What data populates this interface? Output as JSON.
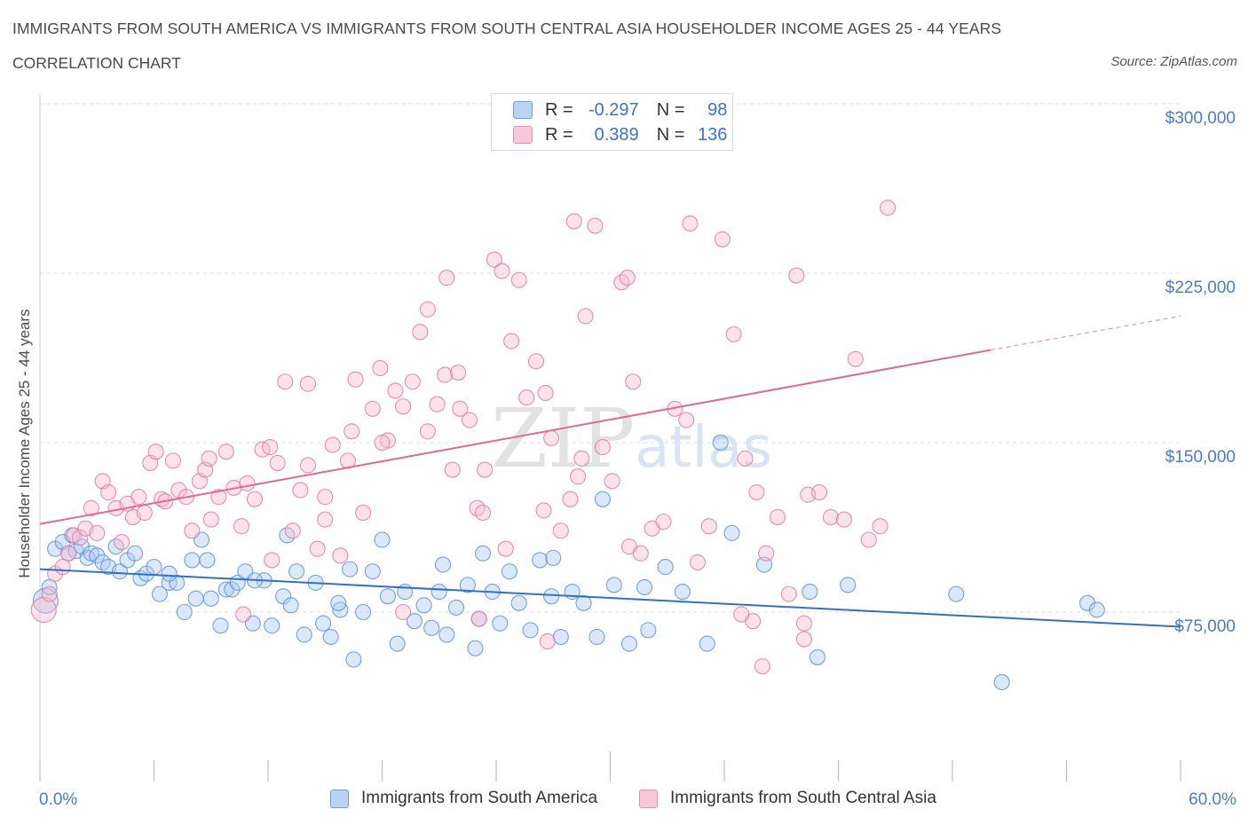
{
  "chart_data": {
    "type": "scatter",
    "title": "IMMIGRANTS FROM SOUTH AMERICA VS IMMIGRANTS FROM SOUTH CENTRAL ASIA HOUSEHOLDER INCOME AGES 25 - 44 YEARS",
    "subtitle": "CORRELATION CHART",
    "source": "Source: ZipAtlas.com",
    "watermark": "ZIPatlas",
    "ylabel": "Householder Income Ages 25 - 44 years",
    "xlim": [
      0,
      60
    ],
    "ylim": [
      0,
      300000
    ],
    "x_tick_labels": {
      "left": "0.0%",
      "right": "60.0%"
    },
    "y_ticks": [
      {
        "value": 75000,
        "label": "$75,000"
      },
      {
        "value": 150000,
        "label": "$150,000"
      },
      {
        "value": 225000,
        "label": "$225,000"
      },
      {
        "value": 300000,
        "label": "$300,000"
      }
    ],
    "stats": [
      {
        "r_label": "R =",
        "r": "-0.297",
        "n_label": "N =",
        "n": "98"
      },
      {
        "r_label": "R =",
        "r": "0.389",
        "n_label": "N =",
        "n": "136"
      }
    ],
    "series": [
      {
        "name": "Immigrants from South America",
        "color": "#5b93db",
        "fill": "#a9c8ee",
        "trend": {
          "x0": 0,
          "y0": 94000,
          "x1": 60,
          "y1": 68500
        },
        "points": [
          [
            0.3,
            80000
          ],
          [
            0.5,
            86000
          ],
          [
            0.8,
            103000
          ],
          [
            1.2,
            106000
          ],
          [
            1.5,
            101000
          ],
          [
            1.7,
            109000
          ],
          [
            1.9,
            102000
          ],
          [
            2.2,
            104000
          ],
          [
            2.5,
            99000
          ],
          [
            2.7,
            101000
          ],
          [
            3.0,
            100000
          ],
          [
            3.3,
            97000
          ],
          [
            3.6,
            95000
          ],
          [
            4.0,
            104000
          ],
          [
            4.2,
            93000
          ],
          [
            4.6,
            98000
          ],
          [
            5.0,
            101000
          ],
          [
            5.3,
            90000
          ],
          [
            5.6,
            92000
          ],
          [
            6.0,
            95000
          ],
          [
            6.3,
            83000
          ],
          [
            6.8,
            88000
          ],
          [
            7.2,
            88000
          ],
          [
            7.6,
            75000
          ],
          [
            8.0,
            98000
          ],
          [
            8.2,
            81000
          ],
          [
            8.5,
            107000
          ],
          [
            8.8,
            98000
          ],
          [
            9.0,
            81000
          ],
          [
            9.5,
            69000
          ],
          [
            9.8,
            85000
          ],
          [
            10.1,
            85000
          ],
          [
            10.4,
            88000
          ],
          [
            10.8,
            93000
          ],
          [
            11.2,
            70000
          ],
          [
            11.8,
            89000
          ],
          [
            12.2,
            69000
          ],
          [
            12.8,
            82000
          ],
          [
            13.2,
            78000
          ],
          [
            13.5,
            93000
          ],
          [
            13.9,
            65000
          ],
          [
            14.5,
            88000
          ],
          [
            14.9,
            70000
          ],
          [
            15.3,
            64000
          ],
          [
            15.8,
            76000
          ],
          [
            16.3,
            94000
          ],
          [
            16.5,
            54000
          ],
          [
            17.0,
            75000
          ],
          [
            17.5,
            93000
          ],
          [
            18.0,
            107000
          ],
          [
            18.3,
            82000
          ],
          [
            18.8,
            61000
          ],
          [
            19.2,
            84000
          ],
          [
            19.7,
            71000
          ],
          [
            20.2,
            78000
          ],
          [
            20.6,
            68000
          ],
          [
            21.0,
            84000
          ],
          [
            21.4,
            65000
          ],
          [
            21.9,
            77000
          ],
          [
            22.5,
            87000
          ],
          [
            22.9,
            59000
          ],
          [
            23.3,
            101000
          ],
          [
            23.8,
            84000
          ],
          [
            24.2,
            70000
          ],
          [
            24.7,
            93000
          ],
          [
            25.2,
            79000
          ],
          [
            25.8,
            67000
          ],
          [
            26.3,
            98000
          ],
          [
            26.9,
            82000
          ],
          [
            27.4,
            64000
          ],
          [
            28.0,
            84000
          ],
          [
            28.6,
            79000
          ],
          [
            29.3,
            64000
          ],
          [
            29.6,
            125000
          ],
          [
            30.2,
            87000
          ],
          [
            31.0,
            61000
          ],
          [
            31.8,
            86000
          ],
          [
            32.9,
            95000
          ],
          [
            33.8,
            84000
          ],
          [
            35.1,
            61000
          ],
          [
            35.8,
            150000
          ],
          [
            36.4,
            110000
          ],
          [
            38.1,
            96000
          ],
          [
            40.5,
            84000
          ],
          [
            40.9,
            55000
          ],
          [
            42.5,
            87000
          ],
          [
            48.2,
            83000
          ],
          [
            50.6,
            44000
          ],
          [
            55.1,
            79000
          ],
          [
            55.6,
            76000
          ],
          [
            6.8,
            92000
          ],
          [
            13.0,
            109000
          ],
          [
            21.2,
            96000
          ],
          [
            27.0,
            99000
          ],
          [
            32.0,
            67000
          ],
          [
            15.7,
            79000
          ],
          [
            23.1,
            72000
          ],
          [
            11.3,
            89000
          ]
        ],
        "sizes": [
          40,
          28
        ]
      },
      {
        "name": "Immigrants from South Central Asia",
        "color": "#e17ba0",
        "fill": "#f5bad0",
        "trend": {
          "x0": 0,
          "y0": 114000,
          "x1": 50,
          "y1": 191000,
          "dash_x1": 60,
          "dash_y1": 206000
        },
        "points": [
          [
            0.2,
            76000
          ],
          [
            0.5,
            83000
          ],
          [
            0.8,
            92000
          ],
          [
            1.2,
            95000
          ],
          [
            1.5,
            101000
          ],
          [
            1.8,
            109000
          ],
          [
            2.1,
            108000
          ],
          [
            2.4,
            112000
          ],
          [
            2.7,
            121000
          ],
          [
            3.0,
            110000
          ],
          [
            3.3,
            133000
          ],
          [
            3.6,
            128000
          ],
          [
            4.0,
            121000
          ],
          [
            4.3,
            106000
          ],
          [
            4.6,
            123000
          ],
          [
            4.9,
            117000
          ],
          [
            5.2,
            126000
          ],
          [
            5.5,
            119000
          ],
          [
            5.8,
            141000
          ],
          [
            6.1,
            146000
          ],
          [
            6.4,
            125000
          ],
          [
            6.6,
            124000
          ],
          [
            7.0,
            142000
          ],
          [
            7.3,
            129000
          ],
          [
            7.7,
            126000
          ],
          [
            8.0,
            111000
          ],
          [
            8.4,
            133000
          ],
          [
            8.7,
            138000
          ],
          [
            9.0,
            116000
          ],
          [
            9.4,
            126000
          ],
          [
            9.8,
            146000
          ],
          [
            10.2,
            130000
          ],
          [
            10.6,
            113000
          ],
          [
            10.9,
            132000
          ],
          [
            11.3,
            125000
          ],
          [
            11.7,
            147000
          ],
          [
            12.1,
            148000
          ],
          [
            12.5,
            141000
          ],
          [
            12.9,
            177000
          ],
          [
            13.3,
            111000
          ],
          [
            13.7,
            129000
          ],
          [
            14.1,
            140000
          ],
          [
            14.6,
            103000
          ],
          [
            15.0,
            116000
          ],
          [
            15.4,
            149000
          ],
          [
            15.8,
            100000
          ],
          [
            16.2,
            142000
          ],
          [
            16.6,
            178000
          ],
          [
            17.0,
            119000
          ],
          [
            17.5,
            165000
          ],
          [
            17.9,
            183000
          ],
          [
            18.3,
            151000
          ],
          [
            18.7,
            173000
          ],
          [
            19.1,
            166000
          ],
          [
            19.6,
            177000
          ],
          [
            20.0,
            199000
          ],
          [
            20.4,
            155000
          ],
          [
            20.9,
            167000
          ],
          [
            21.3,
            180000
          ],
          [
            21.7,
            138000
          ],
          [
            22.1,
            165000
          ],
          [
            22.6,
            160000
          ],
          [
            23.0,
            121000
          ],
          [
            23.4,
            138000
          ],
          [
            23.9,
            231000
          ],
          [
            24.3,
            226000
          ],
          [
            24.8,
            195000
          ],
          [
            25.2,
            222000
          ],
          [
            25.6,
            170000
          ],
          [
            26.1,
            186000
          ],
          [
            26.5,
            120000
          ],
          [
            26.9,
            152000
          ],
          [
            27.4,
            111000
          ],
          [
            27.9,
            125000
          ],
          [
            28.3,
            135000
          ],
          [
            28.7,
            206000
          ],
          [
            29.2,
            246000
          ],
          [
            29.6,
            148000
          ],
          [
            30.1,
            133000
          ],
          [
            30.6,
            221000
          ],
          [
            31.0,
            104000
          ],
          [
            31.6,
            101000
          ],
          [
            32.2,
            112000
          ],
          [
            32.8,
            115000
          ],
          [
            33.4,
            165000
          ],
          [
            34.0,
            160000
          ],
          [
            34.6,
            97000
          ],
          [
            35.2,
            113000
          ],
          [
            35.9,
            240000
          ],
          [
            36.5,
            198000
          ],
          [
            37.1,
            143000
          ],
          [
            37.7,
            128000
          ],
          [
            38.2,
            101000
          ],
          [
            38.8,
            117000
          ],
          [
            39.4,
            83000
          ],
          [
            39.8,
            224000
          ],
          [
            40.4,
            127000
          ],
          [
            41.0,
            128000
          ],
          [
            41.6,
            117000
          ],
          [
            42.3,
            116000
          ],
          [
            42.9,
            187000
          ],
          [
            43.6,
            107000
          ],
          [
            44.2,
            113000
          ],
          [
            37.5,
            71000
          ],
          [
            40.2,
            70000
          ],
          [
            10.7,
            74000
          ],
          [
            19.1,
            75000
          ],
          [
            31.2,
            177000
          ],
          [
            14.1,
            176000
          ],
          [
            23.3,
            119000
          ],
          [
            24.5,
            103000
          ],
          [
            15.0,
            126000
          ],
          [
            16.4,
            155000
          ],
          [
            20.4,
            209000
          ],
          [
            22.0,
            181000
          ],
          [
            21.4,
            223000
          ],
          [
            26.6,
            172000
          ],
          [
            12.2,
            98000
          ],
          [
            18.0,
            150000
          ],
          [
            28.1,
            248000
          ],
          [
            34.2,
            247000
          ],
          [
            40.2,
            63000
          ],
          [
            36.9,
            74000
          ],
          [
            23.1,
            72000
          ],
          [
            26.7,
            62000
          ],
          [
            44.6,
            254000
          ],
          [
            30.9,
            223000
          ],
          [
            28.5,
            143000
          ],
          [
            38.0,
            51000
          ],
          [
            8.9,
            143000
          ]
        ],
        "sizes": [
          40,
          28
        ]
      }
    ]
  },
  "legend": [
    "Immigrants from South America",
    "Immigrants from South Central Asia"
  ]
}
